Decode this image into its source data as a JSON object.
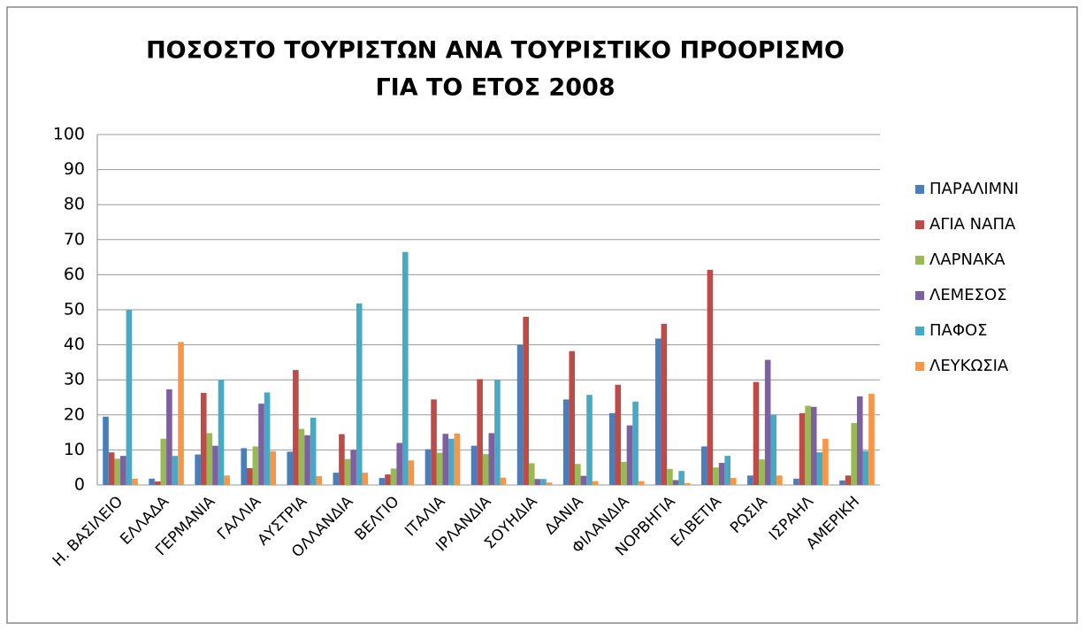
{
  "chart_data": {
    "type": "bar",
    "title": [
      "ΠΟΣΟΣΤΟ ΤΟΥΡΙΣΤΩΝ ΑΝΑ ΤΟΥΡΙΣΤΙΚΟ ΠΡΟΟΡΙΣΜΟ",
      "ΓΙΑ ΤΟ ΕΤΟΣ 2008"
    ],
    "categories": [
      "Η. ΒΑΣΙΛΕΙΟ",
      "ΕΛΛΑΔΑ",
      "ΓΕΡΜΑΝΙΑ",
      "ΓΑΛΛΙΑ",
      "ΑΥΣΤΡΙΑ",
      "ΟΛΛΑΝΔΙΑ",
      "ΒΕΛΓΙΟ",
      "ΙΤΑΛΙΑ",
      "ΙΡΛΑΝΔΙΑ",
      "ΣΟΥΗΔΙΑ",
      "ΔΑΝΙΑ",
      "ΦΙΛΑΝΔΙΑ",
      "ΝΟΡΒΗΓΙΑ",
      "ΕΛΒΕΤΙΑ",
      "ΡΩΣΙΑ",
      "ΙΣΡΑΗΛ",
      "ΑΜΕΡΙΚΗ"
    ],
    "series": [
      {
        "name": "ΠΑΡΑΛΙΜΝΙ",
        "color": "#4a7ebb",
        "values": [
          19.5,
          1.8,
          8.7,
          10.5,
          9.5,
          3.5,
          2,
          10.2,
          11.2,
          40,
          24.4,
          20.5,
          41.8,
          11,
          2.7,
          1.8,
          1.3
        ]
      },
      {
        "name": "ΑΓΙΑ ΝΑΠΑ",
        "color": "#be4b48",
        "values": [
          9.3,
          1,
          26.3,
          4.8,
          32.8,
          14.5,
          3,
          24.4,
          30.2,
          48,
          38.2,
          28.6,
          46,
          61.4,
          29.4,
          20.5,
          2.7
        ]
      },
      {
        "name": "ΛΑΡΝΑΚΑ",
        "color": "#98b954",
        "values": [
          7.5,
          13.2,
          14.8,
          11,
          16,
          7.4,
          4.7,
          9.2,
          8.8,
          6.2,
          6,
          6.6,
          4.6,
          5,
          7.3,
          22.6,
          17.7
        ]
      },
      {
        "name": "ΛΕΜΕΣΟΣ",
        "color": "#7d60a0",
        "values": [
          8.3,
          27.3,
          11.2,
          23.2,
          14.2,
          10,
          12,
          14.6,
          14.8,
          1.7,
          2.6,
          17,
          1.4,
          6.3,
          35.7,
          22.3,
          25.3
        ]
      },
      {
        "name": "ΠΑΦΟΣ",
        "color": "#46aac5",
        "values": [
          50,
          8.3,
          30,
          26.4,
          19.2,
          51.8,
          66.5,
          13.2,
          30,
          1.7,
          25.7,
          23.8,
          4,
          8.3,
          20,
          9.3,
          9.7
        ]
      },
      {
        "name": "ΛΕΥΚΩΣΙΑ",
        "color": "#f79646",
        "values": [
          1.8,
          40.8,
          2.7,
          9.6,
          2.5,
          3.5,
          7,
          14.7,
          2.1,
          0.7,
          1.1,
          1.1,
          0.5,
          2,
          2.7,
          13.2,
          26
        ]
      }
    ],
    "ylim": [
      0,
      100
    ],
    "yticks": [
      0,
      10,
      20,
      30,
      40,
      50,
      60,
      70,
      80,
      90,
      100
    ],
    "grid": true,
    "legend": "right"
  }
}
